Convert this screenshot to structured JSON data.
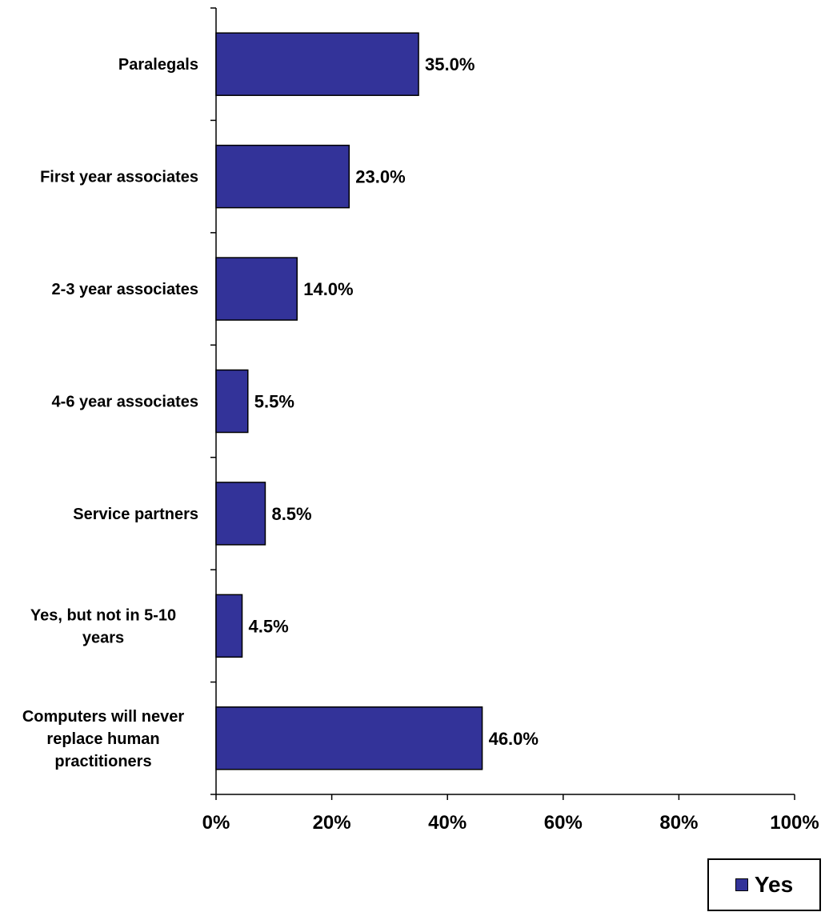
{
  "chart_data": {
    "type": "bar",
    "orientation": "horizontal",
    "categories": [
      [
        "Paralegals"
      ],
      [
        "First year associates"
      ],
      [
        "2-3 year associates"
      ],
      [
        "4-6 year associates"
      ],
      [
        "Service partners"
      ],
      [
        "Yes, but not in 5-10",
        "years"
      ],
      [
        "Computers will never",
        "replace human",
        "practitioners"
      ]
    ],
    "series": [
      {
        "name": "Yes",
        "values": [
          35.0,
          23.0,
          14.0,
          5.5,
          8.5,
          4.5,
          46.0
        ]
      }
    ],
    "value_labels": [
      "35.0%",
      "23.0%",
      "14.0%",
      "5.5%",
      "8.5%",
      "4.5%",
      "46.0%"
    ],
    "xlim": [
      0,
      100
    ],
    "xticks": [
      0,
      20,
      40,
      60,
      80,
      100
    ],
    "xtick_labels": [
      "0%",
      "20%",
      "40%",
      "60%",
      "80%",
      "100%"
    ],
    "grid": false,
    "legend_position": "bottom-right",
    "colors": {
      "bar": "#333399",
      "outline": "#000000"
    }
  },
  "legend": {
    "label": "Yes"
  }
}
